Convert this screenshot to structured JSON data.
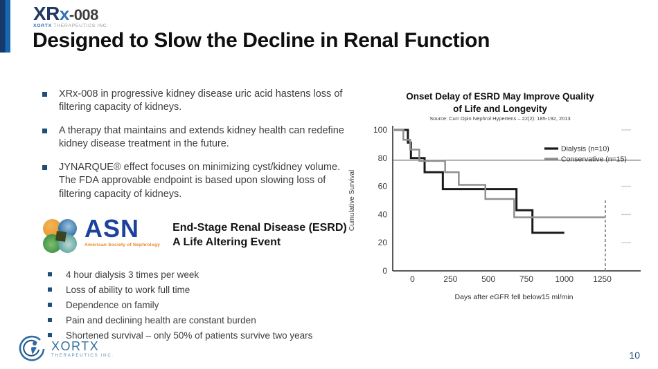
{
  "slide": {
    "title": "Designed to Slow the Decline in Renal Function",
    "page_number": "10"
  },
  "brand": {
    "logo_main": "XR",
    "logo_x": "x",
    "logo_suffix": "-008",
    "logo_sub_left": "XORTX",
    "logo_sub_right": "THERAPEUTICS INC.",
    "footer_name": "XORTX",
    "footer_sub": "THERAPEUTICS INC.",
    "accent_dark": "#15396c",
    "accent_blue": "#1767b0"
  },
  "bullets_top": [
    "XRx-008 in progressive kidney disease uric acid hastens loss of filtering capacity of kidneys.",
    "A therapy that maintains and extends kidney health can redefine kidney disease treatment in the future.",
    "JYNARQUE® effect focuses on minimizing cyst/kidney volume. The FDA approvable endpoint is based upon slowing loss of filtering capacity of kidneys."
  ],
  "asn": {
    "acronym": "ASN",
    "caption": "American Society of Nephrology",
    "heading_line1": "End-Stage Renal Disease (ESRD)",
    "heading_line2": "A Life Altering Event"
  },
  "bullets_bottom": [
    "4 hour dialysis 3 times per week",
    "Loss of ability to work full time",
    "Dependence on family",
    "Pain and declining health are constant burden",
    "Shortened survival – only 50% of patients survive two years"
  ],
  "chart_data": {
    "type": "line",
    "subtype": "kaplan-meier-step",
    "title": "Onset Delay of ESRD May Improve Quality of Life and Longevity",
    "title_lines": [
      "Onset Delay of ESRD May Improve Quality",
      "of Life and Longevity"
    ],
    "source": "Source: Curr Opin Nephrol Hypertens – 22(2): 185-192, 2013",
    "xlabel": "Days after eGFR fell below15 ml/min",
    "ylabel": "Cumulative Survival",
    "xlim": [
      -130,
      1430
    ],
    "ylim": [
      0,
      100
    ],
    "xticks": [
      0,
      250,
      500,
      750,
      1000,
      1250
    ],
    "yticks": [
      0,
      20,
      40,
      60,
      80,
      100
    ],
    "grid": false,
    "reference_line_y": 78.5,
    "dashed_vline": {
      "x": 1270,
      "y_bottom": 0,
      "y_top": 50
    },
    "right_edge_tick_values": [
      100,
      60,
      40,
      20
    ],
    "legend_position": "upper-right",
    "legend": [
      {
        "label": "Dialysis (n=10)",
        "color": "#1a1a1a"
      },
      {
        "label": "Conservative (n=15)",
        "color": "#8f8f8f"
      }
    ],
    "series": [
      {
        "name": "Dialysis (n=10)",
        "color": "#1a1a1a",
        "width": 3,
        "step_points": [
          [
            -120,
            100
          ],
          [
            -30,
            100
          ],
          [
            -30,
            91
          ],
          [
            -10,
            91
          ],
          [
            -10,
            80
          ],
          [
            80,
            80
          ],
          [
            80,
            70
          ],
          [
            200,
            70
          ],
          [
            200,
            58
          ],
          [
            685,
            58
          ],
          [
            685,
            43
          ],
          [
            790,
            43
          ],
          [
            790,
            27
          ],
          [
            1000,
            27
          ]
        ]
      },
      {
        "name": "Conservative (n=15)",
        "color": "#8f8f8f",
        "width": 2.5,
        "step_points": [
          [
            -120,
            100
          ],
          [
            -60,
            100
          ],
          [
            -60,
            93
          ],
          [
            -15,
            93
          ],
          [
            -15,
            86
          ],
          [
            45,
            86
          ],
          [
            45,
            78
          ],
          [
            215,
            78
          ],
          [
            215,
            70
          ],
          [
            305,
            70
          ],
          [
            305,
            61
          ],
          [
            480,
            61
          ],
          [
            480,
            51
          ],
          [
            670,
            51
          ],
          [
            670,
            38
          ],
          [
            1270,
            38
          ]
        ]
      }
    ]
  }
}
